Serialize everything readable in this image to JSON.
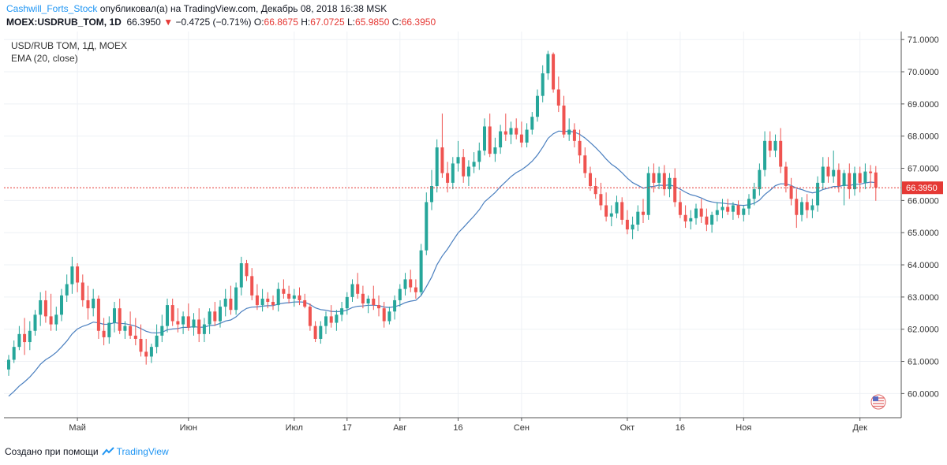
{
  "header": {
    "author": "Cashwill_Forts_Stock",
    "published": "опубликовал(а) на TradingView.com, Декабрь 08, 2018 16:38 MSK",
    "symbol": "MOEX:USDRUB_TOM, 1D",
    "last": "66.3950",
    "change": "−0.4725 (−0.71%)",
    "open_label": "O:",
    "open": "66.8675",
    "high_label": "H:",
    "high": "67.0725",
    "low_label": "L:",
    "low": "65.9850",
    "close_label": "C:",
    "close": "66.3950"
  },
  "legend": {
    "instrument": "USD/RUB TOM, 1Д, MOEX",
    "indicator": "EMA (20, close)"
  },
  "footer": {
    "created_with": "Создано при помощи",
    "brand": "TradingView"
  },
  "colors": {
    "up": "#26a69a",
    "down": "#ef5350",
    "ema": "#4a7fbf",
    "price_line": "#e53935",
    "grid": "#eef1f5",
    "axis_text": "#333333"
  },
  "chart_data": {
    "type": "candlestick",
    "title": "USD/RUB TOM, 1Д, MOEX",
    "ylim": [
      59.25,
      71.25
    ],
    "y_ticks": [
      "60.0000",
      "61.0000",
      "62.0000",
      "63.0000",
      "64.0000",
      "65.0000",
      "66.0000",
      "67.0000",
      "68.0000",
      "69.0000",
      "70.0000",
      "71.0000"
    ],
    "x_ticks": [
      {
        "label": "Май",
        "index": 13
      },
      {
        "label": "Июн",
        "index": 34
      },
      {
        "label": "Июл",
        "index": 54
      },
      {
        "label": "17",
        "index": 64
      },
      {
        "label": "Авг",
        "index": 74
      },
      {
        "label": "16",
        "index": 85
      },
      {
        "label": "Сен",
        "index": 97
      },
      {
        "label": "Окт",
        "index": 117
      },
      {
        "label": "16",
        "index": 127
      },
      {
        "label": "Ноя",
        "index": 139
      },
      {
        "label": "Дек",
        "index": 161
      }
    ],
    "last_price_label": "66.3950",
    "last_price": 66.395,
    "series": [
      {
        "name": "USD/RUB TOM",
        "ohlc": [
          [
            60.75,
            61.2,
            60.55,
            61.05
          ],
          [
            61.05,
            61.65,
            60.95,
            61.45
          ],
          [
            61.45,
            62.1,
            61.35,
            61.85
          ],
          [
            61.85,
            62.35,
            61.2,
            61.6
          ],
          [
            61.6,
            62.25,
            61.35,
            61.95
          ],
          [
            61.95,
            62.6,
            61.8,
            62.45
          ],
          [
            62.45,
            63.15,
            62.1,
            62.9
          ],
          [
            62.9,
            63.2,
            62.2,
            62.4
          ],
          [
            62.4,
            63.1,
            61.95,
            62.15
          ],
          [
            62.15,
            62.7,
            61.95,
            62.45
          ],
          [
            62.45,
            63.25,
            62.25,
            63.05
          ],
          [
            63.05,
            63.7,
            62.85,
            63.4
          ],
          [
            63.4,
            64.25,
            63.1,
            63.95
          ],
          [
            63.95,
            64.05,
            63.15,
            63.45
          ],
          [
            63.45,
            63.7,
            62.7,
            62.9
          ],
          [
            62.9,
            63.35,
            62.3,
            62.65
          ],
          [
            62.65,
            63.25,
            62.4,
            62.95
          ],
          [
            62.95,
            63.05,
            61.7,
            61.95
          ],
          [
            61.95,
            62.35,
            61.5,
            61.75
          ],
          [
            61.75,
            62.4,
            61.55,
            62.2
          ],
          [
            62.2,
            62.85,
            61.9,
            62.65
          ],
          [
            62.65,
            62.95,
            61.85,
            61.95
          ],
          [
            61.95,
            62.25,
            61.7,
            62.1
          ],
          [
            62.1,
            62.55,
            61.7,
            61.8
          ],
          [
            61.8,
            62.35,
            61.5,
            61.7
          ],
          [
            61.7,
            62.15,
            61.15,
            61.3
          ],
          [
            61.3,
            61.7,
            60.9,
            61.15
          ],
          [
            61.15,
            61.55,
            60.95,
            61.45
          ],
          [
            61.45,
            62.15,
            61.25,
            61.8
          ],
          [
            61.8,
            62.45,
            61.6,
            62.1
          ],
          [
            62.1,
            62.95,
            61.9,
            62.75
          ],
          [
            62.75,
            62.95,
            62.1,
            62.25
          ],
          [
            62.25,
            62.65,
            61.9,
            62.15
          ],
          [
            62.15,
            62.55,
            61.85,
            62.4
          ],
          [
            62.4,
            62.8,
            61.95,
            62.05
          ],
          [
            62.05,
            62.5,
            61.8,
            62.3
          ],
          [
            62.3,
            62.65,
            61.6,
            61.85
          ],
          [
            61.85,
            62.35,
            61.6,
            62.15
          ],
          [
            62.15,
            62.65,
            61.85,
            62.55
          ],
          [
            62.55,
            62.85,
            62.1,
            62.25
          ],
          [
            62.25,
            62.9,
            62.05,
            62.7
          ],
          [
            62.7,
            63.25,
            62.4,
            62.95
          ],
          [
            62.95,
            63.35,
            62.45,
            62.6
          ],
          [
            62.6,
            63.45,
            62.45,
            63.3
          ],
          [
            63.3,
            64.25,
            63.05,
            64.05
          ],
          [
            64.05,
            64.15,
            63.5,
            63.65
          ],
          [
            63.65,
            63.9,
            62.9,
            63.05
          ],
          [
            63.05,
            63.4,
            62.6,
            62.75
          ],
          [
            62.75,
            63.25,
            62.55,
            62.95
          ],
          [
            62.95,
            63.15,
            62.65,
            62.85
          ],
          [
            62.85,
            63.05,
            62.6,
            62.75
          ],
          [
            62.75,
            63.45,
            62.55,
            63.25
          ],
          [
            63.25,
            63.55,
            62.95,
            63.1
          ],
          [
            63.1,
            63.35,
            62.8,
            62.95
          ],
          [
            62.95,
            63.25,
            62.7,
            63.05
          ],
          [
            63.05,
            63.3,
            62.75,
            62.9
          ],
          [
            62.9,
            63.1,
            62.65,
            62.7
          ],
          [
            62.7,
            62.8,
            61.95,
            62.1
          ],
          [
            62.1,
            62.25,
            61.6,
            61.7
          ],
          [
            61.7,
            62.25,
            61.55,
            62.1
          ],
          [
            62.1,
            62.55,
            61.85,
            62.4
          ],
          [
            62.4,
            62.75,
            62.05,
            62.2
          ],
          [
            62.2,
            62.6,
            61.95,
            62.45
          ],
          [
            62.45,
            62.85,
            62.25,
            62.65
          ],
          [
            62.65,
            63.15,
            62.45,
            63.0
          ],
          [
            63.0,
            63.55,
            62.85,
            63.4
          ],
          [
            63.4,
            63.75,
            62.95,
            63.1
          ],
          [
            63.1,
            63.35,
            62.65,
            62.8
          ],
          [
            62.8,
            63.05,
            62.5,
            62.95
          ],
          [
            62.95,
            63.35,
            62.6,
            62.75
          ],
          [
            62.75,
            63.05,
            62.4,
            62.65
          ],
          [
            62.65,
            62.85,
            62.05,
            62.25
          ],
          [
            62.25,
            62.7,
            62.15,
            62.55
          ],
          [
            62.55,
            63.05,
            62.3,
            62.9
          ],
          [
            62.9,
            63.4,
            62.7,
            63.25
          ],
          [
            63.25,
            63.75,
            63.05,
            63.55
          ],
          [
            63.55,
            63.85,
            63.15,
            63.3
          ],
          [
            63.3,
            63.55,
            62.95,
            63.15
          ],
          [
            63.15,
            64.65,
            63.05,
            64.45
          ],
          [
            64.45,
            66.25,
            64.3,
            65.95
          ],
          [
            65.95,
            66.95,
            65.7,
            66.45
          ],
          [
            66.45,
            67.9,
            66.25,
            67.65
          ],
          [
            67.65,
            68.7,
            66.7,
            66.85
          ],
          [
            66.85,
            67.2,
            66.25,
            66.55
          ],
          [
            66.55,
            67.35,
            66.35,
            67.15
          ],
          [
            67.15,
            67.85,
            66.9,
            67.35
          ],
          [
            67.35,
            67.6,
            66.55,
            66.75
          ],
          [
            66.75,
            67.25,
            66.45,
            67.05
          ],
          [
            67.05,
            67.5,
            66.85,
            67.2
          ],
          [
            67.2,
            67.8,
            66.95,
            67.55
          ],
          [
            67.55,
            68.55,
            67.4,
            68.3
          ],
          [
            68.3,
            68.7,
            67.35,
            67.45
          ],
          [
            67.45,
            67.95,
            67.2,
            67.65
          ],
          [
            67.65,
            68.35,
            67.45,
            68.15
          ],
          [
            68.15,
            68.7,
            67.85,
            68.05
          ],
          [
            68.05,
            68.45,
            67.75,
            68.25
          ],
          [
            68.25,
            68.55,
            67.9,
            68.05
          ],
          [
            68.05,
            68.45,
            67.65,
            67.8
          ],
          [
            67.8,
            68.4,
            67.65,
            68.2
          ],
          [
            68.2,
            68.75,
            68.05,
            68.6
          ],
          [
            68.6,
            69.45,
            68.45,
            69.25
          ],
          [
            69.25,
            70.2,
            69.05,
            69.95
          ],
          [
            69.95,
            70.65,
            69.75,
            70.55
          ],
          [
            70.55,
            70.6,
            69.35,
            69.45
          ],
          [
            69.45,
            69.85,
            68.75,
            68.95
          ],
          [
            68.95,
            69.25,
            67.95,
            68.05
          ],
          [
            68.05,
            68.55,
            67.85,
            68.2
          ],
          [
            68.2,
            68.4,
            67.65,
            67.85
          ],
          [
            67.85,
            68.2,
            67.15,
            67.4
          ],
          [
            67.4,
            67.65,
            66.7,
            66.85
          ],
          [
            66.85,
            67.05,
            66.3,
            66.45
          ],
          [
            66.45,
            66.7,
            66.05,
            66.2
          ],
          [
            66.2,
            66.55,
            65.7,
            65.85
          ],
          [
            65.85,
            66.25,
            65.35,
            65.5
          ],
          [
            65.5,
            65.85,
            65.2,
            65.6
          ],
          [
            65.6,
            66.15,
            65.45,
            65.95
          ],
          [
            65.95,
            66.1,
            65.25,
            65.4
          ],
          [
            65.4,
            65.7,
            64.95,
            65.1
          ],
          [
            65.1,
            65.5,
            64.8,
            65.25
          ],
          [
            65.25,
            65.85,
            65.05,
            65.65
          ],
          [
            65.65,
            66.05,
            65.3,
            65.55
          ],
          [
            65.55,
            67.05,
            65.4,
            66.85
          ],
          [
            66.85,
            67.15,
            66.25,
            66.55
          ],
          [
            66.55,
            67.05,
            66.35,
            66.85
          ],
          [
            66.85,
            67.1,
            66.15,
            66.35
          ],
          [
            66.35,
            66.85,
            66.1,
            66.7
          ],
          [
            66.7,
            67.0,
            65.8,
            65.95
          ],
          [
            65.95,
            66.3,
            65.45,
            65.55
          ],
          [
            65.55,
            65.85,
            65.15,
            65.35
          ],
          [
            65.35,
            65.7,
            65.1,
            65.45
          ],
          [
            65.45,
            65.9,
            65.25,
            65.75
          ],
          [
            65.75,
            66.05,
            65.3,
            65.5
          ],
          [
            65.5,
            65.75,
            65.05,
            65.25
          ],
          [
            65.25,
            65.65,
            65.0,
            65.55
          ],
          [
            65.55,
            65.95,
            65.35,
            65.7
          ],
          [
            65.7,
            66.05,
            65.45,
            65.8
          ],
          [
            65.8,
            66.05,
            65.55,
            65.65
          ],
          [
            65.65,
            65.95,
            65.4,
            65.85
          ],
          [
            65.85,
            66.0,
            65.45,
            65.55
          ],
          [
            65.55,
            65.85,
            65.35,
            65.75
          ],
          [
            65.75,
            66.2,
            65.55,
            66.05
          ],
          [
            66.05,
            66.55,
            65.85,
            66.35
          ],
          [
            66.35,
            67.15,
            66.15,
            66.95
          ],
          [
            66.95,
            68.15,
            66.75,
            67.85
          ],
          [
            67.85,
            68.15,
            67.35,
            67.55
          ],
          [
            67.55,
            68.05,
            67.35,
            67.85
          ],
          [
            67.85,
            68.25,
            66.85,
            67.05
          ],
          [
            67.05,
            67.2,
            66.25,
            66.45
          ],
          [
            66.45,
            66.7,
            65.85,
            66.05
          ],
          [
            66.05,
            66.35,
            65.15,
            65.55
          ],
          [
            65.55,
            66.1,
            65.35,
            65.95
          ],
          [
            65.95,
            66.2,
            65.45,
            65.7
          ],
          [
            65.7,
            66.05,
            65.45,
            65.85
          ],
          [
            65.85,
            66.75,
            65.65,
            66.55
          ],
          [
            66.55,
            67.35,
            66.35,
            67.05
          ],
          [
            67.05,
            67.35,
            66.55,
            66.75
          ],
          [
            66.75,
            67.55,
            66.55,
            66.95
          ],
          [
            66.95,
            67.15,
            66.25,
            66.45
          ],
          [
            66.45,
            66.95,
            65.85,
            66.85
          ],
          [
            66.85,
            67.15,
            66.05,
            66.35
          ],
          [
            66.35,
            67.05,
            66.15,
            66.85
          ],
          [
            66.85,
            67.05,
            66.25,
            66.55
          ],
          [
            66.55,
            67.15,
            66.35,
            66.9
          ],
          [
            66.9,
            67.1,
            66.4,
            66.85
          ],
          [
            66.87,
            67.07,
            65.99,
            66.4
          ]
        ]
      },
      {
        "name": "EMA (20, close)",
        "ema_period": 20,
        "ema_seed": 59.8
      }
    ]
  }
}
